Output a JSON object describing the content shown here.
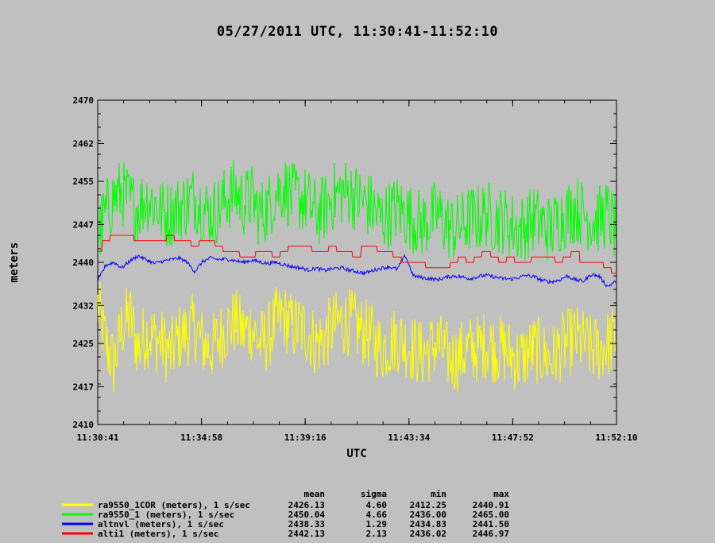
{
  "chart_data": {
    "type": "line",
    "title": "05/27/2011  UTC, 11:30:41-11:52:10",
    "xlabel": "UTC",
    "ylabel": "meters",
    "x_ticks": [
      "11:30:41",
      "11:34:58",
      "11:39:16",
      "11:43:34",
      "11:47:52",
      "11:52:10"
    ],
    "y_ticks": [
      2410,
      2417,
      2425,
      2432,
      2440,
      2447,
      2455,
      2462,
      2470
    ],
    "xlim": [
      "11:30:41",
      "11:52:10"
    ],
    "ylim": [
      2410,
      2470
    ],
    "grid": false,
    "legend_position": "bottom",
    "stats_headers": [
      "mean",
      "sigma",
      "min",
      "max"
    ],
    "series": [
      {
        "name": "ra9550_1COR (meters), 1 s/sec",
        "color": "#ffff00",
        "stats": [
          "2426.13",
          "4.60",
          "2412.25",
          "2440.91"
        ],
        "values": [
          2432,
          2425,
          2421,
          2428,
          2430,
          2424,
          2427,
          2426,
          2425,
          2423,
          2426,
          2427,
          2428,
          2425,
          2424,
          2426,
          2428,
          2429,
          2427,
          2428,
          2425,
          2426,
          2429,
          2430,
          2428,
          2428,
          2427,
          2425,
          2426,
          2428,
          2429,
          2429,
          2428,
          2427,
          2426,
          2424,
          2425,
          2426,
          2425,
          2424,
          2423,
          2424,
          2425,
          2423,
          2422,
          2423,
          2424,
          2424,
          2425,
          2424,
          2424,
          2423,
          2422,
          2423,
          2424,
          2423,
          2422,
          2424,
          2425,
          2426,
          2425,
          2424,
          2424,
          2425,
          2426
        ]
      },
      {
        "name": "ra9550_1 (meters), 1 s/sec",
        "color": "#00ff00",
        "stats": [
          "2450.04",
          "4.66",
          "2436.00",
          "2465.00"
        ],
        "values": [
          2445,
          2449,
          2452,
          2453,
          2451,
          2450,
          2452,
          2451,
          2449,
          2449,
          2450,
          2451,
          2452,
          2450,
          2449,
          2450,
          2452,
          2453,
          2451,
          2452,
          2449,
          2450,
          2453,
          2454,
          2452,
          2452,
          2451,
          2449,
          2450,
          2452,
          2453,
          2453,
          2452,
          2451,
          2450,
          2448,
          2449,
          2450,
          2449,
          2448,
          2447,
          2448,
          2449,
          2447,
          2446,
          2447,
          2448,
          2448,
          2449,
          2448,
          2448,
          2447,
          2446,
          2447,
          2448,
          2447,
          2446,
          2448,
          2449,
          2450,
          2449,
          2448,
          2448,
          2449,
          2446
        ]
      },
      {
        "name": "altnvl (meters), 1 s/sec",
        "color": "#0000ff",
        "stats": [
          "2438.33",
          "1.29",
          "2434.83",
          "2441.50"
        ],
        "values": [
          2436.5,
          2439.5,
          2440.0,
          2439.0,
          2440.3,
          2441.2,
          2440.5,
          2439.8,
          2440.2,
          2440.5,
          2440.8,
          2440.1,
          2438.3,
          2440.2,
          2440.8,
          2440.5,
          2440.6,
          2440.3,
          2440.0,
          2440.4,
          2440.1,
          2439.8,
          2440.0,
          2439.6,
          2439.2,
          2439.0,
          2438.6,
          2438.9,
          2438.5,
          2438.8,
          2439.0,
          2438.6,
          2438.3,
          2438.0,
          2438.5,
          2438.9,
          2439.2,
          2438.7,
          2441.3,
          2437.5,
          2437.2,
          2437.0,
          2436.8,
          2437.2,
          2437.5,
          2437.3,
          2437.0,
          2437.4,
          2437.6,
          2437.3,
          2437.0,
          2436.9,
          2437.2,
          2437.6,
          2437.3,
          2436.6,
          2436.4,
          2436.7,
          2437.5,
          2436.8,
          2436.5,
          2437.8,
          2437.4,
          2435.5,
          2436.5
        ]
      },
      {
        "name": "alti1 (meters), 1 s/sec",
        "color": "#ff0000",
        "stats": [
          "2442.13",
          "2.13",
          "2436.02",
          "2446.97"
        ],
        "values": [
          2442.0,
          2444.0,
          2445.0,
          2445.0,
          2445.0,
          2444.0,
          2444.0,
          2444.0,
          2444.0,
          2445.0,
          2444.0,
          2444.0,
          2443.0,
          2444.0,
          2444.0,
          2443.0,
          2442.0,
          2442.0,
          2441.0,
          2441.0,
          2442.0,
          2442.0,
          2441.0,
          2442.0,
          2443.0,
          2443.0,
          2443.0,
          2442.0,
          2442.0,
          2443.0,
          2442.0,
          2442.0,
          2441.0,
          2443.0,
          2443.0,
          2442.0,
          2442.0,
          2441.0,
          2440.0,
          2440.0,
          2440.0,
          2439.0,
          2439.0,
          2439.0,
          2440.0,
          2441.0,
          2440.0,
          2441.0,
          2442.0,
          2441.0,
          2440.0,
          2441.0,
          2440.0,
          2440.0,
          2441.0,
          2441.0,
          2441.0,
          2440.0,
          2441.0,
          2442.0,
          2440.0,
          2440.0,
          2440.0,
          2439.0,
          2438.0
        ]
      }
    ]
  }
}
